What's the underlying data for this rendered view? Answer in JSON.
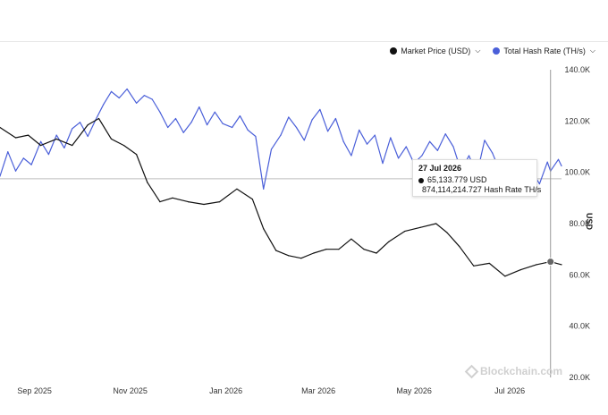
{
  "chart_data": {
    "type": "line",
    "y_axis_title": "USD",
    "ylim": [
      20000,
      140000
    ],
    "y_ticks": [
      "20.0K",
      "40.0K",
      "60.0K",
      "80.0K",
      "100.0K",
      "120.0K",
      "140.0K"
    ],
    "y_tick_values": [
      20000,
      40000,
      60000,
      80000,
      100000,
      120000,
      140000
    ],
    "x_ticks": [
      "Sep 2025",
      "Nov 2025",
      "Jan 2026",
      "Mar 2026",
      "May 2026",
      "Jul 2026"
    ],
    "x_tick_dates": [
      "2025-09-01",
      "2025-11-01",
      "2026-01-01",
      "2026-03-01",
      "2026-05-01",
      "2026-07-01"
    ],
    "x_range": [
      "2025-08-10",
      "2026-08-03"
    ],
    "legend_position": "top-right",
    "reference_line_value": 97500,
    "series": [
      {
        "name": "Market Price (USD)",
        "color": "#111111",
        "dates": [
          "2025-08-10",
          "2025-08-20",
          "2025-08-28",
          "2025-09-05",
          "2025-09-15",
          "2025-09-25",
          "2025-10-05",
          "2025-10-12",
          "2025-10-20",
          "2025-10-28",
          "2025-11-05",
          "2025-11-12",
          "2025-11-20",
          "2025-11-28",
          "2025-12-08",
          "2025-12-18",
          "2025-12-28",
          "2026-01-08",
          "2026-01-18",
          "2026-01-25",
          "2026-02-02",
          "2026-02-10",
          "2026-02-18",
          "2026-02-26",
          "2026-03-06",
          "2026-03-14",
          "2026-03-22",
          "2026-03-30",
          "2026-04-07",
          "2026-04-15",
          "2026-04-25",
          "2026-05-05",
          "2026-05-15",
          "2026-05-22",
          "2026-05-30",
          "2026-06-08",
          "2026-06-18",
          "2026-06-28",
          "2026-07-08",
          "2026-07-18",
          "2026-07-27",
          "2026-08-03"
        ],
        "values": [
          117500,
          113500,
          114500,
          110500,
          113000,
          110500,
          118500,
          121000,
          113000,
          110500,
          107000,
          96000,
          88500,
          90000,
          88500,
          87500,
          88500,
          93500,
          89500,
          78000,
          69500,
          67500,
          66500,
          68500,
          70000,
          70000,
          74000,
          70000,
          68500,
          73000,
          77000,
          78500,
          80000,
          76500,
          71000,
          63500,
          64500,
          59500,
          62000,
          64000,
          65134,
          64000
        ]
      },
      {
        "name": "Total Hash Rate (TH/s)",
        "color": "#4a5fd9",
        "unit": "TH/s",
        "dates": [
          "2025-08-10",
          "2025-08-15",
          "2025-08-20",
          "2025-08-25",
          "2025-08-30",
          "2025-09-05",
          "2025-09-10",
          "2025-09-15",
          "2025-09-20",
          "2025-09-25",
          "2025-09-30",
          "2025-10-05",
          "2025-10-10",
          "2025-10-15",
          "2025-10-20",
          "2025-10-25",
          "2025-10-30",
          "2025-11-05",
          "2025-11-10",
          "2025-11-15",
          "2025-11-20",
          "2025-11-25",
          "2025-11-30",
          "2025-12-05",
          "2025-12-10",
          "2025-12-15",
          "2025-12-20",
          "2025-12-25",
          "2025-12-30",
          "2026-01-05",
          "2026-01-10",
          "2026-01-15",
          "2026-01-20",
          "2026-01-25",
          "2026-01-30",
          "2026-02-05",
          "2026-02-10",
          "2026-02-15",
          "2026-02-20",
          "2026-02-25",
          "2026-03-02",
          "2026-03-07",
          "2026-03-12",
          "2026-03-17",
          "2026-03-22",
          "2026-03-27",
          "2026-04-01",
          "2026-04-06",
          "2026-04-11",
          "2026-04-16",
          "2026-04-21",
          "2026-04-26",
          "2026-05-01",
          "2026-05-06",
          "2026-05-11",
          "2026-05-16",
          "2026-05-21",
          "2026-05-26",
          "2026-05-31",
          "2026-06-05",
          "2026-06-10",
          "2026-06-15",
          "2026-06-20",
          "2026-06-25",
          "2026-06-30",
          "2026-07-05",
          "2026-07-10",
          "2026-07-15",
          "2026-07-20",
          "2026-07-25",
          "2026-07-27",
          "2026-08-01",
          "2026-08-03"
        ],
        "values": [
          98500,
          108000,
          100500,
          105500,
          103000,
          112000,
          107000,
          114500,
          109500,
          117000,
          119500,
          114000,
          120500,
          126500,
          131500,
          129000,
          132500,
          127000,
          130000,
          128500,
          123500,
          117500,
          121000,
          115500,
          119500,
          125500,
          118500,
          123500,
          119000,
          117500,
          122000,
          116500,
          114000,
          93500,
          109000,
          114500,
          121500,
          117500,
          112500,
          120500,
          124500,
          116000,
          121000,
          112000,
          106500,
          116500,
          111000,
          114500,
          103500,
          113500,
          105500,
          110000,
          103500,
          106500,
          112000,
          108500,
          115000,
          110000,
          100500,
          106500,
          99000,
          112500,
          107500,
          100000,
          103500,
          98500,
          95000,
          100500,
          95500,
          104000,
          100500,
          105000,
          102500
        ],
        "tooltip_value_label": "874,114,214.727 Hash Rate TH/s"
      }
    ],
    "tooltip": {
      "date": "27 Jul 2026",
      "price_label": "65,133.779 USD",
      "hash_label": "874,114,214.727 Hash Rate TH/s"
    }
  },
  "legend": {
    "items": [
      {
        "label": "Market Price (USD)",
        "color": "#111111"
      },
      {
        "label": "Total Hash Rate (TH/s)",
        "color": "#4a5fd9"
      }
    ]
  },
  "watermark": "Blockchain.com"
}
